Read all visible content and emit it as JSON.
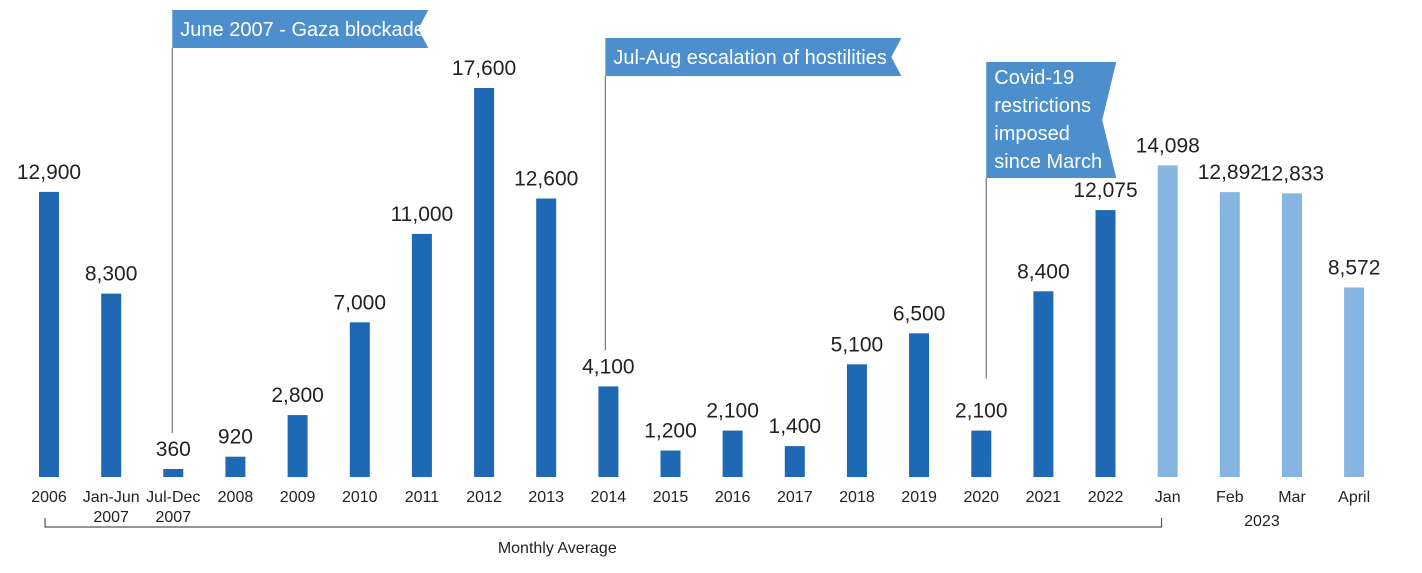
{
  "chart_data": {
    "type": "bar",
    "title": "",
    "xlabel": "",
    "ylabel": "",
    "ylim": [
      0,
      18000
    ],
    "colors": {
      "monthly_average": "#1f68b3",
      "year_2023": "#86b5e1",
      "annotation": "#4d8fcc",
      "line": "#777777"
    },
    "categories": [
      {
        "label": [
          "2006"
        ],
        "value": 12900,
        "value_label": "12,900",
        "group": "avg"
      },
      {
        "label": [
          "Jan-Jun",
          "2007"
        ],
        "value": 8300,
        "value_label": "8,300",
        "group": "avg"
      },
      {
        "label": [
          "Jul-Dec",
          "2007"
        ],
        "value": 360,
        "value_label": "360",
        "group": "avg"
      },
      {
        "label": [
          "2008"
        ],
        "value": 920,
        "value_label": "920",
        "group": "avg"
      },
      {
        "label": [
          "2009"
        ],
        "value": 2800,
        "value_label": "2,800",
        "group": "avg"
      },
      {
        "label": [
          "2010"
        ],
        "value": 7000,
        "value_label": "7,000",
        "group": "avg"
      },
      {
        "label": [
          "2011"
        ],
        "value": 11000,
        "value_label": "11,000",
        "group": "avg"
      },
      {
        "label": [
          "2012"
        ],
        "value": 17600,
        "value_label": "17,600",
        "group": "avg"
      },
      {
        "label": [
          "2013"
        ],
        "value": 12600,
        "value_label": "12,600",
        "group": "avg"
      },
      {
        "label": [
          "2014"
        ],
        "value": 4100,
        "value_label": "4,100",
        "group": "avg"
      },
      {
        "label": [
          "2015"
        ],
        "value": 1200,
        "value_label": "1,200",
        "group": "avg"
      },
      {
        "label": [
          "2016"
        ],
        "value": 2100,
        "value_label": "2,100",
        "group": "avg"
      },
      {
        "label": [
          "2017"
        ],
        "value": 1400,
        "value_label": "1,400",
        "group": "avg"
      },
      {
        "label": [
          "2018"
        ],
        "value": 5100,
        "value_label": "5,100",
        "group": "avg"
      },
      {
        "label": [
          "2019"
        ],
        "value": 6500,
        "value_label": "6,500",
        "group": "avg"
      },
      {
        "label": [
          "2020"
        ],
        "value": 2100,
        "value_label": "2,100",
        "group": "avg"
      },
      {
        "label": [
          "2021"
        ],
        "value": 8400,
        "value_label": "8,400",
        "group": "avg"
      },
      {
        "label": [
          "2022"
        ],
        "value": 12075,
        "value_label": "12,075",
        "group": "avg"
      },
      {
        "label": [
          "Jan"
        ],
        "value": 14098,
        "value_label": "14,098",
        "group": "2023"
      },
      {
        "label": [
          "Feb"
        ],
        "value": 12892,
        "value_label": "12,892",
        "group": "2023"
      },
      {
        "label": [
          "Mar"
        ],
        "value": 12833,
        "value_label": "12,833",
        "group": "2023"
      },
      {
        "label": [
          "April"
        ],
        "value": 8572,
        "value_label": "8,572",
        "group": "2023"
      }
    ],
    "group_labels": {
      "monthly_average": "Monthly Average",
      "year_2023": "2023"
    },
    "annotations": [
      {
        "index": 2,
        "lines": [
          "June 2007 - Gaza blockade"
        ]
      },
      {
        "index": 9,
        "lines": [
          "Jul-Aug escalation of hostilities"
        ]
      },
      {
        "index": 15,
        "lines": [
          "Covid-19",
          "restrictions",
          "imposed",
          "since March"
        ]
      }
    ]
  }
}
